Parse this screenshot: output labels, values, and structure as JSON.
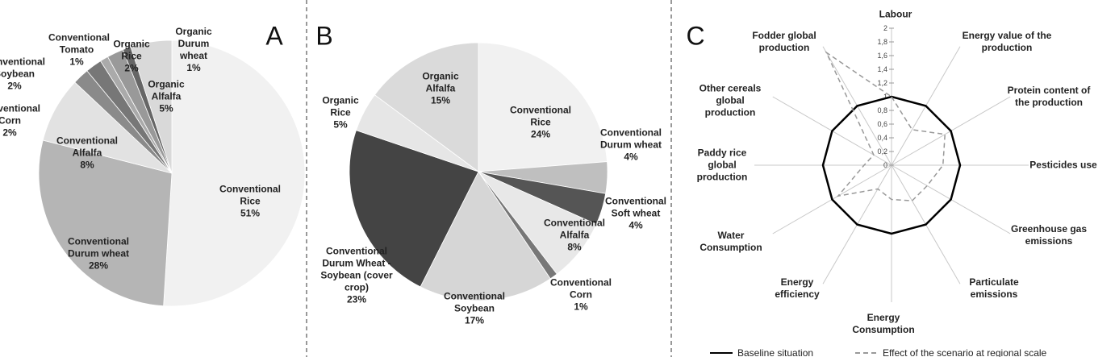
{
  "chart_data": [
    {
      "type": "pie",
      "title": "A",
      "categories": [
        "Conventional Rice",
        "Conventional Durum wheat",
        "Conventional Alfalfa",
        "Conventional Corn",
        "Conventional Soybean",
        "Conventional Tomato",
        "Organic Rice",
        "Organic Durum wheat",
        "Organic Alfalfa"
      ],
      "values": [
        51,
        28,
        8,
        2,
        2,
        1,
        2,
        1,
        5
      ],
      "value_labels": [
        "51%",
        "28%",
        "8%",
        "2%",
        "2%",
        "1%",
        "2%",
        "1%",
        "5%"
      ],
      "colors": [
        "#f1f1f1",
        "#b5b5b5",
        "#e2e2e2",
        "#8a8a8a",
        "#777777",
        "#aaaaaa",
        "#999999",
        "#666666",
        "#d9d9d9"
      ]
    },
    {
      "type": "pie",
      "title": "B",
      "categories": [
        "Conventional Rice",
        "Conventional Durum wheat",
        "Conventional Soft wheat",
        "Conventional Alfalfa",
        "Conventional Corn",
        "Conventional Soybean",
        "Conventional Durum Wheat - Soybean (cover crop)",
        "Organic Rice",
        "Organic Alfalfa"
      ],
      "values": [
        24,
        4,
        4,
        8,
        1,
        17,
        23,
        5,
        15
      ],
      "value_labels": [
        "24%",
        "4%",
        "4%",
        "8%",
        "1%",
        "17%",
        "23%",
        "5%",
        "15%"
      ],
      "colors": [
        "#f1f1f1",
        "#bfbfbf",
        "#555555",
        "#e8e8e8",
        "#777777",
        "#d6d6d6",
        "#444444",
        "#e6e6e6",
        "#dadada"
      ]
    },
    {
      "type": "radar",
      "title": "C",
      "categories": [
        "Labour",
        "Energy value of the production",
        "Protein content of the production",
        "Pesticides use",
        "Greenhouse gas emissions",
        "Particulate emissions",
        "Energy Consumption",
        "Energy efficiency",
        "Water Consumption",
        "Paddy rice global production",
        "Other cereals global production",
        "Fodder global production"
      ],
      "ylim": [
        0,
        2
      ],
      "yticks": [
        0,
        {
          "value": 0.2,
          "label": "0,2"
        },
        {
          "value": 0.4,
          "label": "0,4"
        },
        {
          "value": 0.6,
          "label": "0,6"
        },
        {
          "value": 0.8,
          "label": "0,8"
        },
        1,
        {
          "value": 1.2,
          "label": "1,2"
        },
        {
          "value": 1.4,
          "label": "1,4"
        },
        {
          "value": 1.6,
          "label": "1,6"
        },
        {
          "value": 1.8,
          "label": "1,8"
        },
        2
      ],
      "series": [
        {
          "name": "Baseline situation",
          "color": "#000000",
          "values": [
            1,
            1,
            1,
            1,
            1,
            1,
            1,
            1,
            1,
            1,
            1,
            1
          ]
        },
        {
          "name": "Effect of the scenario at regional scale",
          "color": "#999999",
          "values": [
            1,
            0.6,
            0.9,
            0.75,
            0.6,
            0.6,
            0.5,
            0.4,
            0.9,
            0.4,
            0.3,
            1.9
          ]
        }
      ]
    }
  ]
}
